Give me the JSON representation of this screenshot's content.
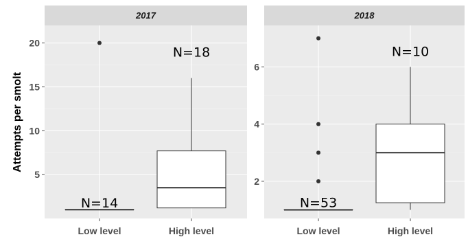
{
  "chart_data": {
    "type": "boxplot",
    "ylabel": "Attempts per smolt",
    "categories": [
      "Low level",
      "High level"
    ],
    "grid": true,
    "panels": [
      {
        "title": "2017",
        "ylim": [
          0,
          22
        ],
        "yticks": [
          5,
          10,
          15,
          20
        ],
        "groups": [
          {
            "category": "Low level",
            "n_label": "N=14",
            "min": 1,
            "q1": 1,
            "median": 1,
            "q3": 1,
            "max": 1,
            "outliers": [
              20
            ],
            "n_label_y": 1.8
          },
          {
            "category": "High level",
            "n_label": "N=18",
            "min": 1.2,
            "q1": 1.2,
            "median": 3.5,
            "q3": 7.7,
            "max": 16,
            "outliers": [],
            "n_label_y": 19
          }
        ]
      },
      {
        "title": "2018",
        "ylim": [
          0.7,
          7.45
        ],
        "yticks": [
          2,
          4,
          6
        ],
        "groups": [
          {
            "category": "Low level",
            "n_label": "N=53",
            "min": 1,
            "q1": 1,
            "median": 1,
            "q3": 1,
            "max": 1,
            "outliers": [
              2,
              3,
              4,
              7
            ],
            "n_label_y": 1.27
          },
          {
            "category": "High level",
            "n_label": "N=10",
            "min": 1,
            "q1": 1.25,
            "median": 3,
            "q3": 4,
            "max": 6,
            "outliers": [],
            "n_label_y": 6.55
          }
        ]
      }
    ]
  }
}
